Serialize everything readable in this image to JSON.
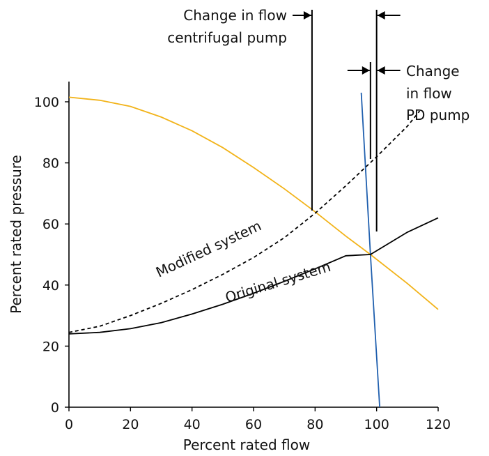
{
  "chart_data": {
    "type": "line",
    "xlabel": "Percent rated flow",
    "ylabel": "Percent rated pressure",
    "xlim": [
      0,
      120
    ],
    "ylim": [
      0,
      110
    ],
    "xticks": [
      "0",
      "20",
      "40",
      "60",
      "80",
      "100",
      "120"
    ],
    "yticks": [
      "0",
      "20",
      "40",
      "60",
      "80",
      "100"
    ],
    "grid": false,
    "legend": "none",
    "series": [
      {
        "key": "centrifugal_pump_curve",
        "color": "#f2b319",
        "dash": "solid",
        "x": [
          0,
          10,
          20,
          30,
          40,
          50,
          60,
          70,
          80,
          90,
          98,
          110,
          120
        ],
        "y": [
          101.5,
          100.5,
          98.5,
          95,
          90.5,
          85,
          78.5,
          71.5,
          64,
          56,
          50,
          40.5,
          32
        ]
      },
      {
        "key": "pd_pump_curve",
        "color": "#1f5fae",
        "dash": "solid",
        "x": [
          95,
          98,
          101
        ],
        "y": [
          103,
          50,
          0
        ]
      },
      {
        "name": "Original system",
        "color": "#000000",
        "dash": "solid",
        "x": [
          0,
          10,
          20,
          30,
          40,
          50,
          60,
          70,
          80,
          90,
          98,
          110,
          120
        ],
        "y": [
          24,
          24.5,
          25.7,
          27.7,
          30.5,
          33.7,
          37.3,
          41.2,
          45.3,
          49.6,
          50,
          57.3,
          62
        ]
      },
      {
        "name": "Modified system",
        "color": "#000000",
        "dash": "dashed",
        "x": [
          0,
          10,
          20,
          30,
          40,
          50,
          60,
          70,
          80,
          90,
          100,
          110,
          114
        ],
        "y": [
          24.5,
          26.5,
          30,
          34,
          38.5,
          43.5,
          49,
          55.5,
          63.5,
          72.5,
          82,
          92,
          97
        ]
      }
    ],
    "annotations": [
      {
        "lines": [
          "Change in flow",
          "centrifugal pump"
        ]
      },
      {
        "lines": [
          "Change",
          "in flow",
          "PD pump"
        ]
      }
    ],
    "flow_change_markers": {
      "centrifugal_pump": {
        "from_x": 79,
        "to_x": 100
      },
      "pd_pump": {
        "from_x": 98,
        "to_x": 100
      }
    }
  }
}
